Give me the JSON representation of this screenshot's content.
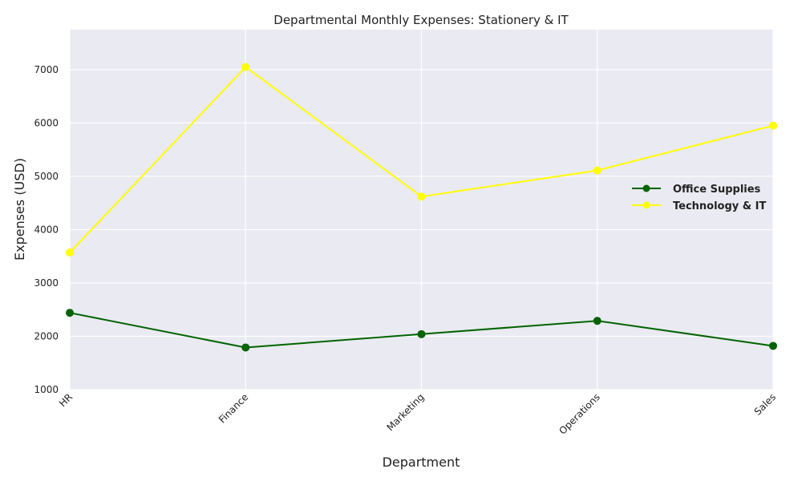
{
  "chart_data": {
    "type": "line",
    "title": "Departmental Monthly Expenses: Stationery & IT",
    "xlabel": "Department",
    "ylabel": "Expenses (USD)",
    "categories": [
      "HR",
      "Finance",
      "Marketing",
      "Operations",
      "Sales"
    ],
    "ylim": [
      1000,
      7750
    ],
    "yticks": [
      1000,
      2000,
      3000,
      4000,
      5000,
      6000,
      7000
    ],
    "grid": true,
    "legend_position": "center-right",
    "series": [
      {
        "name": "Office Supplies",
        "color": "#006400",
        "marker": "circle",
        "values": [
          2440,
          1790,
          2040,
          2290,
          1820
        ]
      },
      {
        "name": "Technology & IT",
        "color": "#ffff00",
        "marker": "circle",
        "values": [
          3570,
          7050,
          4620,
          5110,
          5950
        ]
      }
    ]
  }
}
